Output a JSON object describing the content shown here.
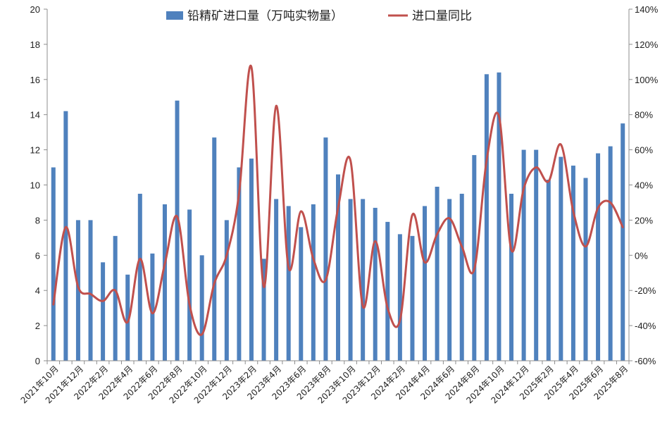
{
  "chart_data": {
    "type": "bar+line",
    "title": "",
    "legend": {
      "placement": "top-center",
      "entries": [
        {
          "name": "铅精矿进口量（万吨实物量）",
          "color": "#4F81BD",
          "kind": "bar"
        },
        {
          "name": "进口量同比",
          "color": "#C0504D",
          "kind": "line"
        }
      ]
    },
    "y_left": {
      "min": 0,
      "max": 20,
      "step": 2,
      "tick_labels": [
        "0",
        "2",
        "4",
        "6",
        "8",
        "10",
        "12",
        "14",
        "16",
        "18",
        "20"
      ]
    },
    "y_right": {
      "min": -60,
      "max": 140,
      "step": 20,
      "tick_labels": [
        "-60%",
        "-40%",
        "-20%",
        "0%",
        "20%",
        "40%",
        "60%",
        "80%",
        "100%",
        "120%",
        "140%"
      ]
    },
    "x_tick_labels": [
      "2021年10月",
      "2021年12月",
      "2022年2月",
      "2022年4月",
      "2022年6月",
      "2022年8月",
      "2022年10月",
      "2022年12月",
      "2023年2月",
      "2023年4月",
      "2023年6月",
      "2023年8月",
      "2023年10月",
      "2023年12月",
      "2024年2月",
      "2024年4月",
      "2024年6月",
      "2024年8月",
      "2024年10月",
      "2024年12月",
      "2025年2月",
      "2025年4月",
      "2025年6月",
      "2025年8月"
    ],
    "categories": [
      "2021-10",
      "2021-11",
      "2021-12",
      "2022-01",
      "2022-02",
      "2022-03",
      "2022-04",
      "2022-05",
      "2022-06",
      "2022-07",
      "2022-08",
      "2022-09",
      "2022-10",
      "2022-11",
      "2022-12",
      "2023-01",
      "2023-02",
      "2023-03",
      "2023-04",
      "2023-05",
      "2023-06",
      "2023-07",
      "2023-08",
      "2023-09",
      "2023-10",
      "2023-11",
      "2023-12",
      "2024-01",
      "2024-02",
      "2024-03",
      "2024-04",
      "2024-05",
      "2024-06",
      "2024-07",
      "2024-08",
      "2024-09",
      "2024-10",
      "2024-11",
      "2024-12",
      "2025-01",
      "2025-02",
      "2025-03",
      "2025-04",
      "2025-05",
      "2025-06",
      "2025-07",
      "2025-08"
    ],
    "series": [
      {
        "name": "铅精矿进口量（万吨实物量）",
        "axis": "left",
        "type": "bar",
        "color": "#4F81BD",
        "values": [
          11.0,
          14.2,
          8.0,
          8.0,
          5.6,
          7.1,
          4.9,
          9.5,
          6.1,
          8.9,
          14.8,
          8.6,
          6.0,
          12.7,
          8.0,
          11.0,
          11.5,
          5.8,
          9.2,
          8.8,
          7.6,
          8.9,
          12.7,
          10.6,
          9.2,
          9.2,
          8.7,
          7.9,
          7.2,
          7.1,
          8.8,
          9.9,
          9.2,
          9.5,
          11.7,
          16.3,
          16.4,
          9.5,
          12.0,
          12.0,
          10.3,
          11.6,
          11.1,
          10.4,
          11.8,
          12.2,
          13.5
        ]
      },
      {
        "name": "进口量同比",
        "axis": "right",
        "type": "line",
        "smooth": true,
        "color": "#C0504D",
        "values": [
          -28,
          16,
          -18,
          -22,
          -26,
          -20,
          -38,
          -2,
          -33,
          -5,
          22,
          -28,
          -45,
          -16,
          0,
          35,
          107,
          -18,
          85,
          -7,
          25,
          -2,
          -14,
          27,
          54,
          -29,
          8,
          -30,
          -37,
          23,
          -4,
          12,
          21,
          5,
          -8,
          54,
          79,
          3,
          38,
          50,
          42,
          63,
          25,
          5,
          27,
          30,
          16
        ]
      }
    ]
  }
}
